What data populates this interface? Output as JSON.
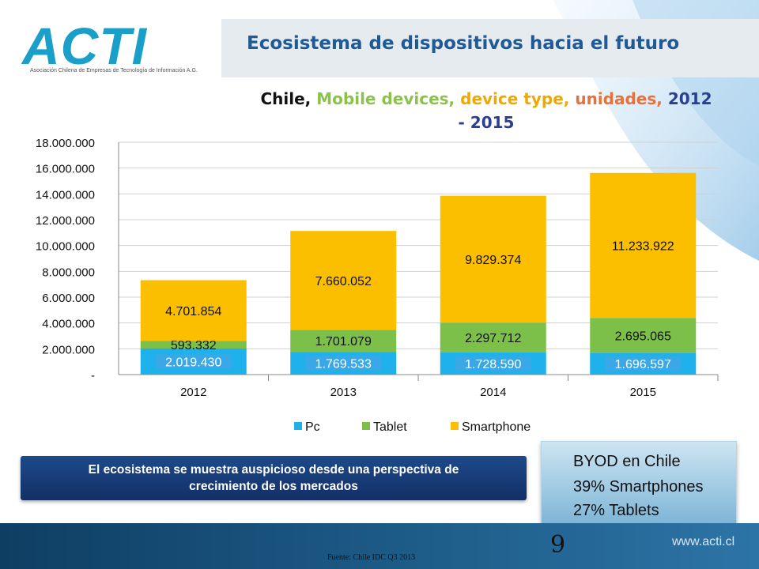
{
  "brand": {
    "logo_text": "ACTI",
    "logo_subtitle": "Asociación Chilena de Empresas de Tecnología de Información A.G.",
    "website": "www.acti.cl"
  },
  "slide": {
    "title": "Ecosistema de dispositivos hacia el futuro",
    "page_number": "9",
    "source": "Fuente: Chile IDC Q3 2013"
  },
  "chart_title_parts": [
    {
      "text": "Chile,",
      "color": "#111111"
    },
    {
      "text": "Mobile devices,",
      "color": "#8bc34a"
    },
    {
      "text": "device type,",
      "color": "#f0a800"
    },
    {
      "text": "unidades,",
      "color": "#e8703a"
    },
    {
      "text": "2012",
      "color": "#2a3f8f"
    },
    {
      "text": "- 2015",
      "color": "#2a3f8f"
    }
  ],
  "callout": {
    "line1": "El ecosistema se muestra auspicioso desde una perspectiva de",
    "line2": "crecimiento de los mercados"
  },
  "byod": {
    "line1": "BYOD en Chile",
    "line2": "39% Smartphones",
    "line3": "27% Tablets"
  },
  "colors": {
    "pc": "#1fb1ec",
    "tablet": "#7cc04a",
    "smartphone": "#fbbf00",
    "pc_label_bg": "#3aa8e6"
  },
  "chart_data": {
    "type": "bar",
    "stacked": true,
    "categories": [
      "2012",
      "2013",
      "2014",
      "2015"
    ],
    "series": [
      {
        "name": "Pc",
        "values": [
          2019430,
          1769533,
          1728590,
          1696597
        ],
        "labels": [
          "2.019.430",
          "1.769.533",
          "1.728.590",
          "1.696.597"
        ]
      },
      {
        "name": "Tablet",
        "values": [
          593332,
          1701079,
          2297712,
          2695065
        ],
        "labels": [
          "593.332",
          "1.701.079",
          "2.297.712",
          "2.695.065"
        ]
      },
      {
        "name": "Smartphone",
        "values": [
          4701854,
          7660052,
          9829374,
          11233922
        ],
        "labels": [
          "4.701.854",
          "7.660.052",
          "9.829.374",
          "11.233.922"
        ]
      }
    ],
    "ylim": [
      0,
      18000000
    ],
    "ytick_values": [
      0,
      2000000,
      4000000,
      6000000,
      8000000,
      10000000,
      12000000,
      14000000,
      16000000,
      18000000
    ],
    "ytick_labels": [
      "-",
      "2.000.000",
      "4.000.000",
      "6.000.000",
      "8.000.000",
      "10.000.000",
      "12.000.000",
      "14.000.000",
      "16.000.000",
      "18.000.000"
    ],
    "grid": true,
    "legend_position": "bottom"
  }
}
